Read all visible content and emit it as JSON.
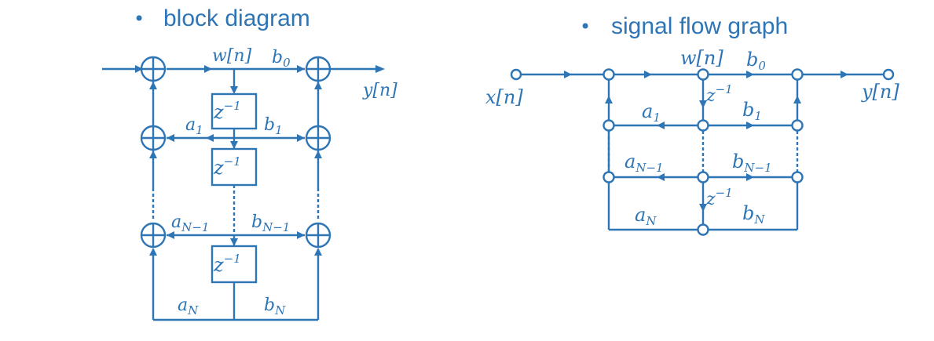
{
  "bullet": "•",
  "headings": {
    "left": "block diagram",
    "right": "signal flow graph"
  },
  "block_diagram": {
    "input_label": "",
    "output_label": "y[n]",
    "w_label": "w[n]",
    "delay": {
      "base": "z",
      "exp": "−1"
    },
    "a_coeffs": [
      {
        "base": "a",
        "sub": "1"
      },
      {
        "base": "a",
        "sub": "N−1"
      },
      {
        "base": "a",
        "sub": "N"
      }
    ],
    "b_coeffs": [
      {
        "base": "b",
        "sub": "0"
      },
      {
        "base": "b",
        "sub": "1"
      },
      {
        "base": "b",
        "sub": "N−1"
      },
      {
        "base": "b",
        "sub": "N"
      }
    ]
  },
  "signal_flow_graph": {
    "input_label": "x[n]",
    "output_label": "y[n]",
    "w_label": "w[n]",
    "delay": {
      "base": "z",
      "exp": "−1"
    },
    "a_coeffs": [
      {
        "base": "a",
        "sub": "1"
      },
      {
        "base": "a",
        "sub": "N−1"
      },
      {
        "base": "a",
        "sub": "N"
      }
    ],
    "b_coeffs": [
      {
        "base": "b",
        "sub": "0"
      },
      {
        "base": "b",
        "sub": "1"
      },
      {
        "base": "b",
        "sub": "N−1"
      },
      {
        "base": "b",
        "sub": "N"
      }
    ]
  }
}
